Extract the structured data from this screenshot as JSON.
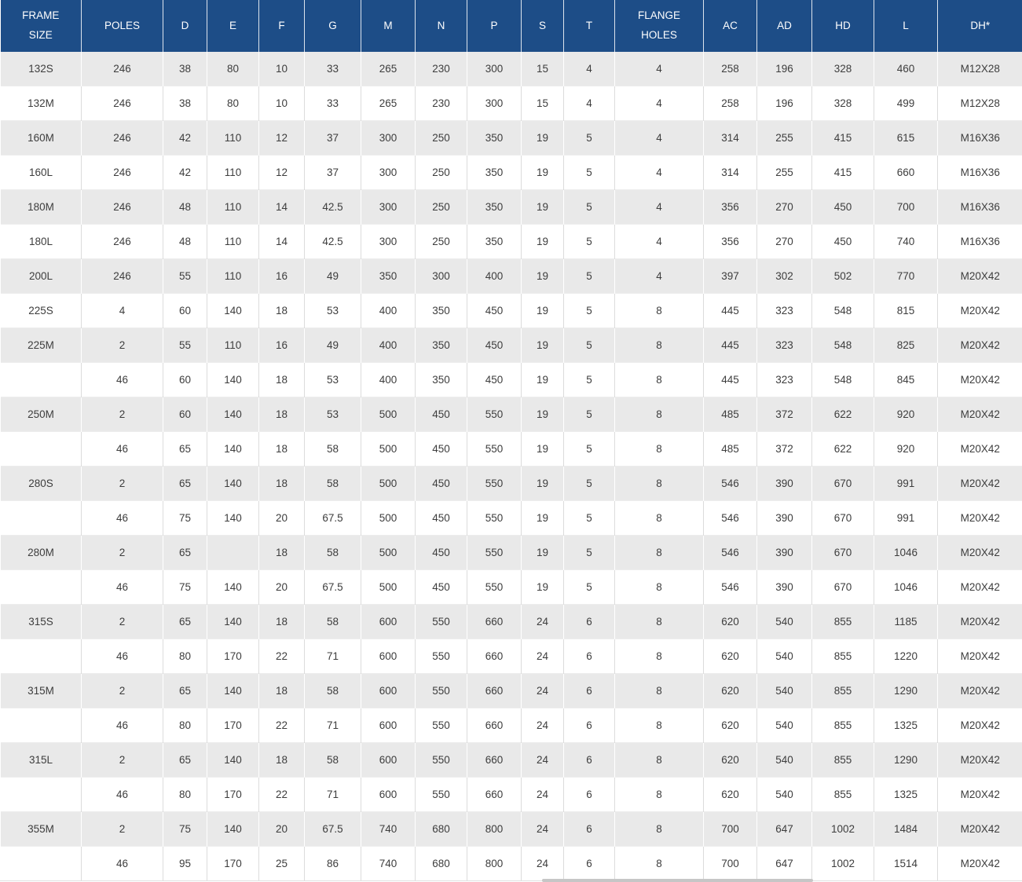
{
  "chart_data": {
    "type": "table",
    "title": "Motor frame size dimension table",
    "columns": [
      "FRAME\nSIZE",
      "POLES",
      "D",
      "E",
      "F",
      "G",
      "M",
      "N",
      "P",
      "S",
      "T",
      "FLANGE\nHOLES",
      "AC",
      "AD",
      "HD",
      "L",
      "DH*"
    ],
    "rows": [
      [
        "132S",
        "246",
        "38",
        "80",
        "10",
        "33",
        "265",
        "230",
        "300",
        "15",
        "4",
        "4",
        "258",
        "196",
        "328",
        "460",
        "M12X28"
      ],
      [
        "132M",
        "246",
        "38",
        "80",
        "10",
        "33",
        "265",
        "230",
        "300",
        "15",
        "4",
        "4",
        "258",
        "196",
        "328",
        "499",
        "M12X28"
      ],
      [
        "160M",
        "246",
        "42",
        "110",
        "12",
        "37",
        "300",
        "250",
        "350",
        "19",
        "5",
        "4",
        "314",
        "255",
        "415",
        "615",
        "M16X36"
      ],
      [
        "160L",
        "246",
        "42",
        "110",
        "12",
        "37",
        "300",
        "250",
        "350",
        "19",
        "5",
        "4",
        "314",
        "255",
        "415",
        "660",
        "M16X36"
      ],
      [
        "180M",
        "246",
        "48",
        "110",
        "14",
        "42.5",
        "300",
        "250",
        "350",
        "19",
        "5",
        "4",
        "356",
        "270",
        "450",
        "700",
        "M16X36"
      ],
      [
        "180L",
        "246",
        "48",
        "110",
        "14",
        "42.5",
        "300",
        "250",
        "350",
        "19",
        "5",
        "4",
        "356",
        "270",
        "450",
        "740",
        "M16X36"
      ],
      [
        "200L",
        "246",
        "55",
        "110",
        "16",
        "49",
        "350",
        "300",
        "400",
        "19",
        "5",
        "4",
        "397",
        "302",
        "502",
        "770",
        "M20X42"
      ],
      [
        "225S",
        "4",
        "60",
        "140",
        "18",
        "53",
        "400",
        "350",
        "450",
        "19",
        "5",
        "8",
        "445",
        "323",
        "548",
        "815",
        "M20X42"
      ],
      [
        "225M",
        "2",
        "55",
        "110",
        "16",
        "49",
        "400",
        "350",
        "450",
        "19",
        "5",
        "8",
        "445",
        "323",
        "548",
        "825",
        "M20X42"
      ],
      [
        "",
        "46",
        "60",
        "140",
        "18",
        "53",
        "400",
        "350",
        "450",
        "19",
        "5",
        "8",
        "445",
        "323",
        "548",
        "845",
        "M20X42"
      ],
      [
        "250M",
        "2",
        "60",
        "140",
        "18",
        "53",
        "500",
        "450",
        "550",
        "19",
        "5",
        "8",
        "485",
        "372",
        "622",
        "920",
        "M20X42"
      ],
      [
        "",
        "46",
        "65",
        "140",
        "18",
        "58",
        "500",
        "450",
        "550",
        "19",
        "5",
        "8",
        "485",
        "372",
        "622",
        "920",
        "M20X42"
      ],
      [
        "280S",
        "2",
        "65",
        "140",
        "18",
        "58",
        "500",
        "450",
        "550",
        "19",
        "5",
        "8",
        "546",
        "390",
        "670",
        "991",
        "M20X42"
      ],
      [
        "",
        "46",
        "75",
        "140",
        "20",
        "67.5",
        "500",
        "450",
        "550",
        "19",
        "5",
        "8",
        "546",
        "390",
        "670",
        "991",
        "M20X42"
      ],
      [
        "280M",
        "2",
        "65",
        "",
        "18",
        "58",
        "500",
        "450",
        "550",
        "19",
        "5",
        "8",
        "546",
        "390",
        "670",
        "1046",
        "M20X42"
      ],
      [
        "",
        "46",
        "75",
        "140",
        "20",
        "67.5",
        "500",
        "450",
        "550",
        "19",
        "5",
        "8",
        "546",
        "390",
        "670",
        "1046",
        "M20X42"
      ],
      [
        "315S",
        "2",
        "65",
        "140",
        "18",
        "58",
        "600",
        "550",
        "660",
        "24",
        "6",
        "8",
        "620",
        "540",
        "855",
        "1185",
        "M20X42"
      ],
      [
        "",
        "46",
        "80",
        "170",
        "22",
        "71",
        "600",
        "550",
        "660",
        "24",
        "6",
        "8",
        "620",
        "540",
        "855",
        "1220",
        "M20X42"
      ],
      [
        "315M",
        "2",
        "65",
        "140",
        "18",
        "58",
        "600",
        "550",
        "660",
        "24",
        "6",
        "8",
        "620",
        "540",
        "855",
        "1290",
        "M20X42"
      ],
      [
        "",
        "46",
        "80",
        "170",
        "22",
        "71",
        "600",
        "550",
        "660",
        "24",
        "6",
        "8",
        "620",
        "540",
        "855",
        "1325",
        "M20X42"
      ],
      [
        "315L",
        "2",
        "65",
        "140",
        "18",
        "58",
        "600",
        "550",
        "660",
        "24",
        "6",
        "8",
        "620",
        "540",
        "855",
        "1290",
        "M20X42"
      ],
      [
        "",
        "46",
        "80",
        "170",
        "22",
        "71",
        "600",
        "550",
        "660",
        "24",
        "6",
        "8",
        "620",
        "540",
        "855",
        "1325",
        "M20X42"
      ],
      [
        "355M",
        "2",
        "75",
        "140",
        "20",
        "67.5",
        "740",
        "680",
        "800",
        "24",
        "6",
        "8",
        "700",
        "647",
        "1002",
        "1484",
        "M20X42"
      ],
      [
        "",
        "46",
        "95",
        "170",
        "25",
        "86",
        "740",
        "680",
        "800",
        "24",
        "6",
        "8",
        "700",
        "647",
        "1002",
        "1514",
        "M20X42"
      ]
    ],
    "layout_hints": {
      "striping": "odd data rows shaded gray, even rows white",
      "alignment": "all cells centered",
      "header_rows": 1,
      "grid": "on"
    }
  },
  "colors": {
    "header_bg": "#1d4d87",
    "header_text": "#ffffff",
    "row_alt_bg": "#e9e9e9",
    "row_bg": "#ffffff",
    "cell_text": "#3d3d3d",
    "border": "#dcdcdc"
  }
}
